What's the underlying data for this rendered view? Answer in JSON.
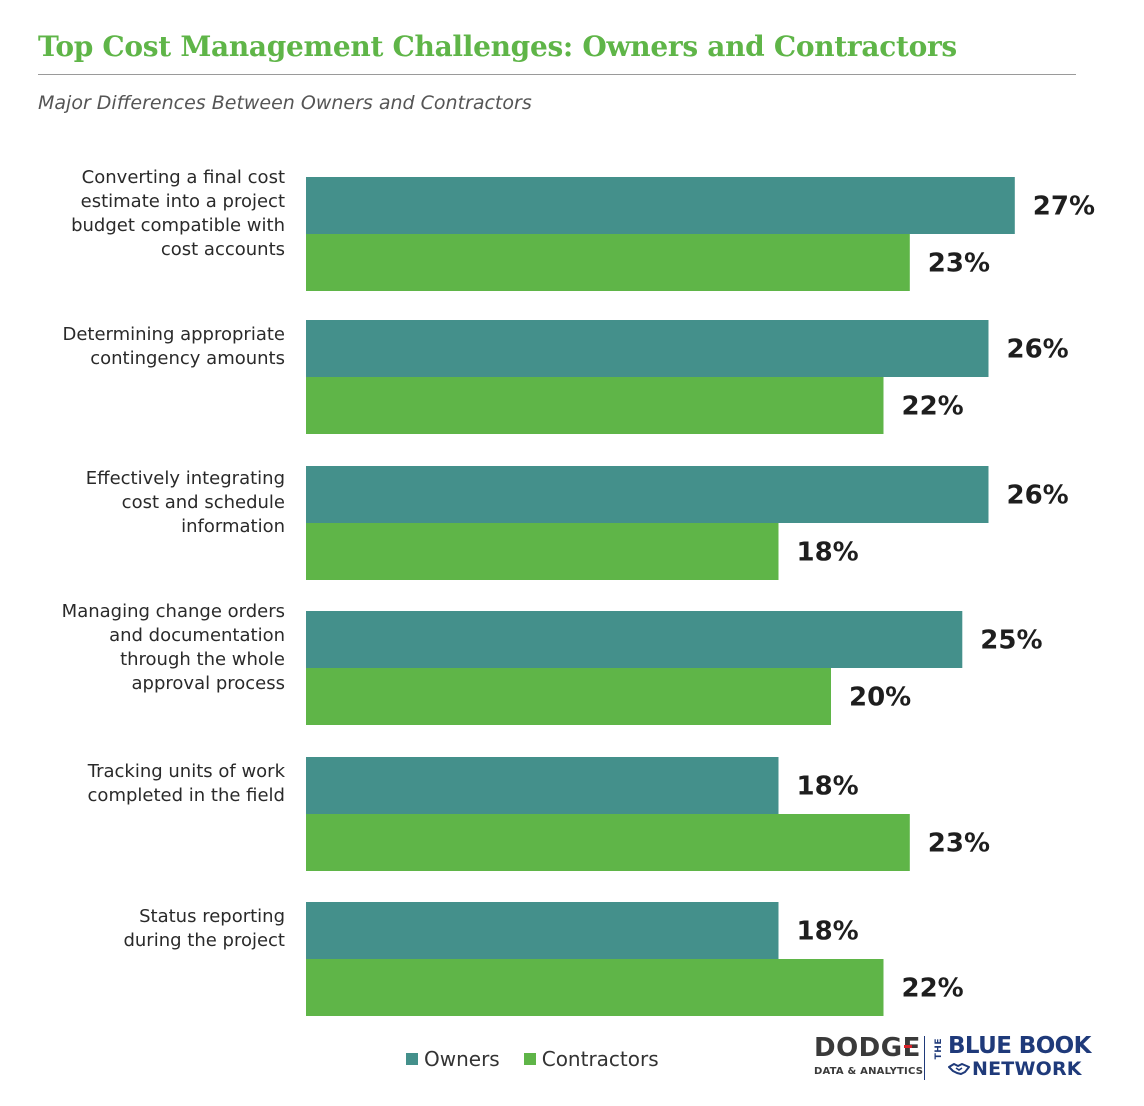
{
  "title": "Top Cost Management Challenges: Owners and Contractors",
  "subtitle": "Major Differences Between Owners and Contractors",
  "colors": {
    "owners": "#44908b",
    "contractors": "#5fb548",
    "title": "#5fb548",
    "logo_blue": "#1f3a7a",
    "logo_red": "#d62027"
  },
  "legend": {
    "owners_label": "Owners",
    "contractors_label": "Contractors",
    "placement": "bottom-center"
  },
  "logos": {
    "dodge_word": "DODGE",
    "dodge_sub": "DATA & ANALYTICS",
    "bbn_the": "THE",
    "bbn_line1": "BLUE BOOK",
    "bbn_line2": "NETWORK",
    "bbn_icon": "handshake-icon"
  },
  "chart_data": {
    "type": "bar",
    "orientation": "horizontal",
    "value_suffix": "%",
    "grid": false,
    "categories": [
      [
        "Converting a final cost",
        "estimate into a project",
        "budget compatible with",
        "cost accounts"
      ],
      [
        "Determining appropriate",
        "contingency amounts"
      ],
      [
        "Effectively integrating",
        "cost and schedule",
        "information"
      ],
      [
        "Managing change orders",
        "and documentation",
        "through the whole",
        "approval process"
      ],
      [
        "Tracking units of work",
        "completed in the field"
      ],
      [
        "Status reporting",
        "during the project"
      ]
    ],
    "series": [
      {
        "name": "Owners",
        "values": [
          27,
          26,
          26,
          25,
          18,
          18
        ]
      },
      {
        "name": "Contractors",
        "values": [
          23,
          22,
          18,
          20,
          23,
          22
        ]
      }
    ]
  }
}
